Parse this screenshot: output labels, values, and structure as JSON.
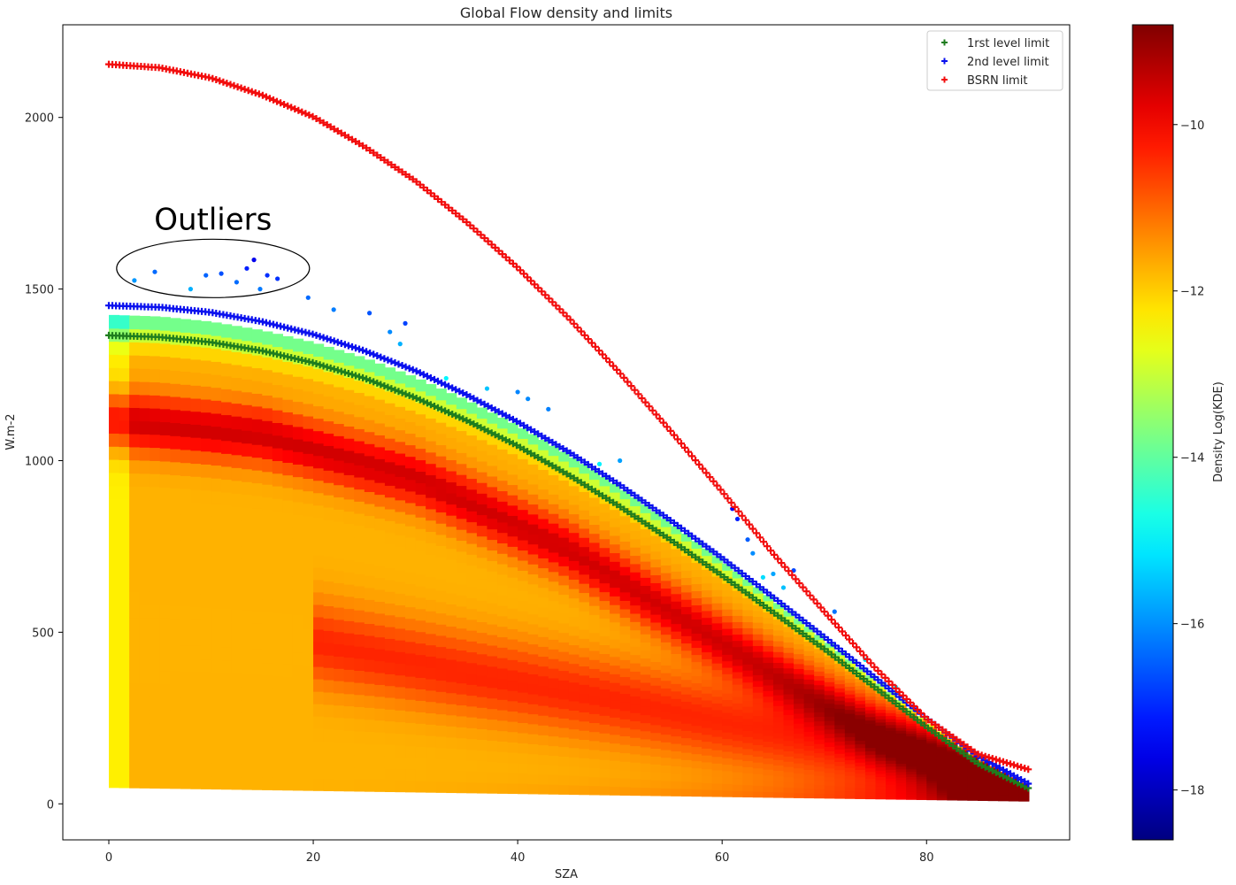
{
  "chart_data": {
    "type": "scatter",
    "title": "Global Flow density and limits",
    "xlabel": "SZA",
    "ylabel": "W.m-2",
    "xlim": [
      -4.5,
      94
    ],
    "ylim": [
      -105,
      2270
    ],
    "xticks": [
      0,
      20,
      40,
      60,
      80
    ],
    "yticks": [
      0,
      500,
      1000,
      1500,
      2000
    ],
    "grid": false,
    "legend_position": "top-right",
    "series": [
      {
        "name": "1rst level limit",
        "color": "#1e7d1e",
        "x": [
          0,
          5,
          10,
          15,
          20,
          25,
          30,
          35,
          40,
          45,
          50,
          55,
          60,
          65,
          70,
          75,
          80,
          85,
          90
        ],
        "y": [
          1365,
          1360,
          1345,
          1320,
          1285,
          1240,
          1183,
          1117,
          1043,
          958,
          866,
          768,
          665,
          558,
          451,
          338,
          224,
          118,
          45
        ]
      },
      {
        "name": "2nd level limit",
        "color": "#0a10ee",
        "x": [
          0,
          5,
          10,
          15,
          20,
          25,
          30,
          35,
          40,
          45,
          50,
          55,
          60,
          65,
          70,
          75,
          80,
          85,
          90
        ],
        "y": [
          1452,
          1447,
          1432,
          1405,
          1368,
          1320,
          1262,
          1192,
          1113,
          1025,
          929,
          825,
          716,
          602,
          486,
          367,
          249,
          140,
          58
        ]
      },
      {
        "name": "BSRN  limit",
        "color": "#f20d0d",
        "x": [
          0,
          5,
          10,
          15,
          20,
          25,
          30,
          35,
          40,
          45,
          50,
          55,
          60,
          65,
          70,
          75,
          80,
          85,
          90
        ],
        "y": [
          2155,
          2145,
          2115,
          2065,
          2002,
          1915,
          1815,
          1695,
          1562,
          1415,
          1255,
          1085,
          910,
          729,
          560,
          395,
          248,
          145,
          100
        ]
      }
    ],
    "density": {
      "label": "Global Flow density",
      "colorbar_label": "Density Log(KDE)",
      "colormap": "jet",
      "clim": [
        -18.6,
        -8.8
      ],
      "colorbar_ticks": [
        -10,
        -12,
        -14,
        -16,
        -18
      ],
      "colorbar_tick_labels": [
        "−10",
        "−12",
        "−14",
        "−16",
        "−18"
      ],
      "ridge_high": {
        "x": [
          0,
          15,
          30,
          45,
          60,
          75,
          90
        ],
        "y": [
          1120,
          1075,
          950,
          740,
          470,
          210,
          20
        ]
      },
      "ridge_low": {
        "x": [
          20,
          35,
          50,
          65,
          80,
          90
        ],
        "y": [
          470,
          380,
          300,
          210,
          110,
          20
        ]
      },
      "outliers": {
        "x": [
          2.5,
          4.5,
          8,
          9.5,
          11,
          12.5,
          13.5,
          14.2,
          14.8,
          15.5,
          16.5,
          19.5,
          22,
          25.5,
          27.5,
          28.5,
          29,
          33,
          37,
          40,
          41,
          43,
          48,
          50,
          61,
          61.5,
          62.5,
          63,
          64,
          65,
          66,
          67,
          71,
          74,
          77
        ],
        "y": [
          1525,
          1550,
          1500,
          1540,
          1545,
          1520,
          1560,
          1585,
          1500,
          1540,
          1530,
          1475,
          1440,
          1430,
          1375,
          1340,
          1400,
          1240,
          1210,
          1200,
          1180,
          1150,
          990,
          1000,
          860,
          830,
          770,
          730,
          660,
          670,
          630,
          680,
          560,
          420,
          340
        ]
      }
    },
    "annotations": [
      {
        "text": "Outliers",
        "x": 10.2,
        "y": 1560
      }
    ]
  }
}
